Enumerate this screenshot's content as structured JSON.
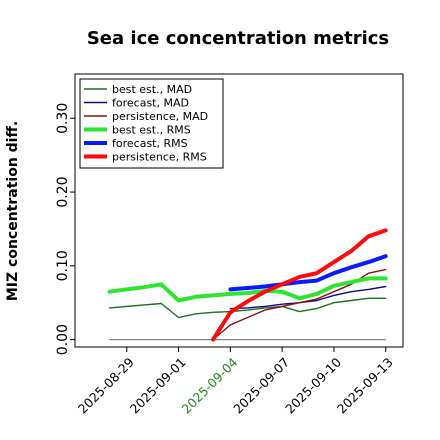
{
  "chart_data": {
    "type": "line",
    "title": "Sea ice concentration metrics",
    "ylabel": "MIZ concentration diff.",
    "xlabel": "",
    "ylim": [
      -0.01,
      0.36
    ],
    "yticks": [
      0.0,
      0.1,
      0.2,
      0.3
    ],
    "ytick_labels": [
      "0.00",
      "0.10",
      "0.20",
      "0.30"
    ],
    "xlim": [
      "2025-08-26",
      "2025-09-14"
    ],
    "xticks": [
      "2025-08-29",
      "2025-09-01",
      "2025-09-04",
      "2025-09-07",
      "2025-09-10",
      "2025-09-13"
    ],
    "xtick_labels": [
      "2025-08-29",
      "2025-09-01",
      "2025-09-04",
      "2025-09-07",
      "2025-09-10",
      "2025-09-13"
    ],
    "xtick_colors": [
      "#000000",
      "#000000",
      "#1e8c1e",
      "#000000",
      "#000000",
      "#000000"
    ],
    "grid": false,
    "legend_position": "top-left",
    "zero_line": {
      "y": 0.0,
      "color": "#888888"
    },
    "series": [
      {
        "name": "best est., MAD",
        "color": "#1f6f1f",
        "width": 1.4,
        "x": [
          "2025-08-28",
          "2025-08-29",
          "2025-08-30",
          "2025-08-31",
          "2025-09-01",
          "2025-09-02",
          "2025-09-03",
          "2025-09-04",
          "2025-09-05",
          "2025-09-06",
          "2025-09-07",
          "2025-09-08",
          "2025-09-09",
          "2025-09-10",
          "2025-09-11",
          "2025-09-12",
          "2025-09-13"
        ],
        "y": [
          0.043,
          0.045,
          0.047,
          0.049,
          0.03,
          0.035,
          0.037,
          0.038,
          0.04,
          0.043,
          0.045,
          0.038,
          0.042,
          0.05,
          0.053,
          0.056,
          0.056
        ]
      },
      {
        "name": "forecast,  MAD",
        "color": "#0a0a8a",
        "width": 1.4,
        "x": [
          "2025-09-04",
          "2025-09-05",
          "2025-09-06",
          "2025-09-07",
          "2025-09-08",
          "2025-09-09",
          "2025-09-10",
          "2025-09-11",
          "2025-09-12",
          "2025-09-13"
        ],
        "y": [
          0.042,
          0.043,
          0.045,
          0.048,
          0.05,
          0.053,
          0.06,
          0.065,
          0.068,
          0.072
        ]
      },
      {
        "name": "persistence, MAD",
        "color": "#8b1010",
        "width": 1.4,
        "x": [
          "2025-09-03",
          "2025-09-04",
          "2025-09-05",
          "2025-09-06",
          "2025-09-07",
          "2025-09-08",
          "2025-09-09",
          "2025-09-10",
          "2025-09-11",
          "2025-09-12",
          "2025-09-13"
        ],
        "y": [
          0.0,
          0.02,
          0.03,
          0.04,
          0.045,
          0.05,
          0.055,
          0.065,
          0.075,
          0.09,
          0.095
        ]
      },
      {
        "name": "best est., RMS",
        "color": "#2ee62e",
        "width": 4,
        "x": [
          "2025-08-28",
          "2025-08-29",
          "2025-08-30",
          "2025-08-31",
          "2025-09-01",
          "2025-09-02",
          "2025-09-03",
          "2025-09-04",
          "2025-09-05",
          "2025-09-06",
          "2025-09-07",
          "2025-09-08",
          "2025-09-09",
          "2025-09-10",
          "2025-09-11",
          "2025-09-12",
          "2025-09-13"
        ],
        "y": [
          0.065,
          0.068,
          0.071,
          0.075,
          0.053,
          0.058,
          0.06,
          0.062,
          0.063,
          0.066,
          0.065,
          0.056,
          0.062,
          0.073,
          0.078,
          0.083,
          0.083
        ]
      },
      {
        "name": "forecast,  RMS",
        "color": "#0a1aff",
        "width": 4,
        "x": [
          "2025-09-04",
          "2025-09-05",
          "2025-09-06",
          "2025-09-07",
          "2025-09-08",
          "2025-09-09",
          "2025-09-10",
          "2025-09-11",
          "2025-09-12",
          "2025-09-13"
        ],
        "y": [
          0.068,
          0.07,
          0.072,
          0.075,
          0.078,
          0.08,
          0.09,
          0.098,
          0.105,
          0.113
        ]
      },
      {
        "name": "persistence, RMS",
        "color": "#ff0a0a",
        "width": 4,
        "x": [
          "2025-09-03",
          "2025-09-04",
          "2025-09-05",
          "2025-09-06",
          "2025-09-07",
          "2025-09-08",
          "2025-09-09",
          "2025-09-10",
          "2025-09-11",
          "2025-09-12",
          "2025-09-13"
        ],
        "y": [
          0.0,
          0.037,
          0.052,
          0.065,
          0.075,
          0.085,
          0.09,
          0.105,
          0.12,
          0.14,
          0.148
        ]
      }
    ]
  }
}
